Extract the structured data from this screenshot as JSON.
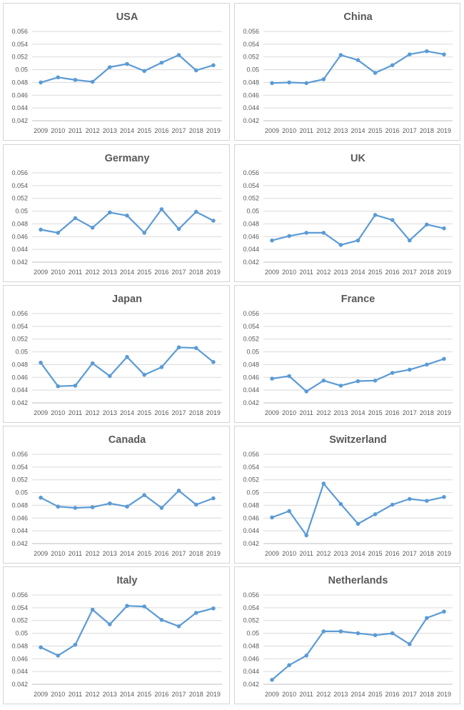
{
  "colors": {
    "series": "#5b9bd5",
    "grid": "#d9d9d9",
    "axis": "#bfbfbf",
    "text": "#595959"
  },
  "chart_data": [
    {
      "type": "line",
      "title": "USA",
      "categories": [
        "2009",
        "2010",
        "2011",
        "2012",
        "2013",
        "2014",
        "2015",
        "2016",
        "2017",
        "2018",
        "2019"
      ],
      "values": [
        0.048,
        0.0488,
        0.0484,
        0.0481,
        0.0504,
        0.0509,
        0.0498,
        0.0511,
        0.0523,
        0.0499,
        0.0507
      ],
      "ylim": [
        0.042,
        0.056
      ],
      "yticks": [
        "0.042",
        "0.044",
        "0.046",
        "0.048",
        "0.05",
        "0.052",
        "0.054",
        "0.056"
      ],
      "grid": true
    },
    {
      "type": "line",
      "title": "China",
      "categories": [
        "2009",
        "2010",
        "2011",
        "2012",
        "2013",
        "2014",
        "2015",
        "2016",
        "2017",
        "2018",
        "2019"
      ],
      "values": [
        0.0479,
        0.048,
        0.0479,
        0.0485,
        0.0523,
        0.0515,
        0.0495,
        0.0507,
        0.0524,
        0.0529,
        0.0524
      ],
      "ylim": [
        0.042,
        0.056
      ],
      "yticks": [
        "0.042",
        "0.044",
        "0.046",
        "0.048",
        "0.05",
        "0.052",
        "0.054",
        "0.056"
      ],
      "grid": true
    },
    {
      "type": "line",
      "title": "Germany",
      "categories": [
        "2009",
        "2010",
        "2011",
        "2012",
        "2013",
        "2014",
        "2015",
        "2016",
        "2017",
        "2018",
        "2019"
      ],
      "values": [
        0.0471,
        0.0466,
        0.0489,
        0.0474,
        0.0498,
        0.0493,
        0.0466,
        0.0503,
        0.0472,
        0.0499,
        0.0485
      ],
      "ylim": [
        0.042,
        0.056
      ],
      "yticks": [
        "0.042",
        "0.044",
        "0.046",
        "0.048",
        "0.05",
        "0.052",
        "0.054",
        "0.056"
      ],
      "grid": true
    },
    {
      "type": "line",
      "title": "UK",
      "categories": [
        "2009",
        "2010",
        "2011",
        "2012",
        "2013",
        "2014",
        "2015",
        "2016",
        "2017",
        "2018",
        "2019"
      ],
      "values": [
        0.0454,
        0.0461,
        0.0466,
        0.0466,
        0.0447,
        0.0454,
        0.0494,
        0.0486,
        0.0454,
        0.0479,
        0.0473
      ],
      "ylim": [
        0.042,
        0.056
      ],
      "yticks": [
        "0.042",
        "0.044",
        "0.046",
        "0.048",
        "0.05",
        "0.052",
        "0.054",
        "0.056"
      ],
      "grid": true
    },
    {
      "type": "line",
      "title": "Japan",
      "categories": [
        "2009",
        "2010",
        "2011",
        "2012",
        "2013",
        "2014",
        "2015",
        "2016",
        "2017",
        "2018",
        "2019"
      ],
      "values": [
        0.0483,
        0.0446,
        0.0447,
        0.0482,
        0.0462,
        0.0492,
        0.0464,
        0.0476,
        0.0507,
        0.0506,
        0.0484
      ],
      "ylim": [
        0.042,
        0.056
      ],
      "yticks": [
        "0.042",
        "0.044",
        "0.046",
        "0.048",
        "0.05",
        "0.052",
        "0.054",
        "0.056"
      ],
      "grid": true
    },
    {
      "type": "line",
      "title": "France",
      "categories": [
        "2009",
        "2010",
        "2011",
        "2012",
        "2013",
        "2014",
        "2015",
        "2016",
        "2017",
        "2018",
        "2019"
      ],
      "values": [
        0.0458,
        0.0462,
        0.0438,
        0.0455,
        0.0447,
        0.0454,
        0.0455,
        0.0467,
        0.0472,
        0.048,
        0.0489
      ],
      "ylim": [
        0.042,
        0.056
      ],
      "yticks": [
        "0.042",
        "0.044",
        "0.046",
        "0.048",
        "0.05",
        "0.052",
        "0.054",
        "0.056"
      ],
      "grid": true
    },
    {
      "type": "line",
      "title": "Canada",
      "categories": [
        "2009",
        "2010",
        "2011",
        "2012",
        "2013",
        "2014",
        "2015",
        "2016",
        "2017",
        "2018",
        "2019"
      ],
      "values": [
        0.0492,
        0.0478,
        0.0476,
        0.0477,
        0.0483,
        0.0478,
        0.0496,
        0.0476,
        0.0503,
        0.0481,
        0.0491
      ],
      "ylim": [
        0.042,
        0.056
      ],
      "yticks": [
        "0.042",
        "0.044",
        "0.046",
        "0.048",
        "0.05",
        "0.052",
        "0.054",
        "0.056"
      ],
      "grid": true
    },
    {
      "type": "line",
      "title": "Switzerland",
      "categories": [
        "2009",
        "2010",
        "2011",
        "2012",
        "2013",
        "2014",
        "2015",
        "2016",
        "2017",
        "2018",
        "2019"
      ],
      "values": [
        0.0461,
        0.0471,
        0.0433,
        0.0514,
        0.0482,
        0.0451,
        0.0466,
        0.0481,
        0.049,
        0.0487,
        0.0493
      ],
      "ylim": [
        0.042,
        0.056
      ],
      "yticks": [
        "0.042",
        "0.044",
        "0.046",
        "0.048",
        "0.05",
        "0.052",
        "0.054",
        "0.056"
      ],
      "grid": true
    },
    {
      "type": "line",
      "title": "Italy",
      "categories": [
        "2009",
        "2010",
        "2011",
        "2012",
        "2013",
        "2014",
        "2015",
        "2016",
        "2017",
        "2018",
        "2019"
      ],
      "values": [
        0.0478,
        0.0465,
        0.0482,
        0.0537,
        0.0514,
        0.0543,
        0.0542,
        0.0521,
        0.0511,
        0.0532,
        0.0539
      ],
      "ylim": [
        0.042,
        0.056
      ],
      "yticks": [
        "0.042",
        "0.044",
        "0.046",
        "0.048",
        "0.05",
        "0.052",
        "0.054",
        "0.056"
      ],
      "grid": true
    },
    {
      "type": "line",
      "title": "Netherlands",
      "categories": [
        "2009",
        "2010",
        "2011",
        "2012",
        "2013",
        "2014",
        "2015",
        "2016",
        "2017",
        "2018",
        "2019"
      ],
      "values": [
        0.0427,
        0.045,
        0.0465,
        0.0503,
        0.0503,
        0.05,
        0.0497,
        0.05,
        0.0483,
        0.0524,
        0.0534
      ],
      "ylim": [
        0.042,
        0.056
      ],
      "yticks": [
        "0.042",
        "0.044",
        "0.046",
        "0.048",
        "0.05",
        "0.052",
        "0.054",
        "0.056"
      ],
      "grid": true
    }
  ]
}
